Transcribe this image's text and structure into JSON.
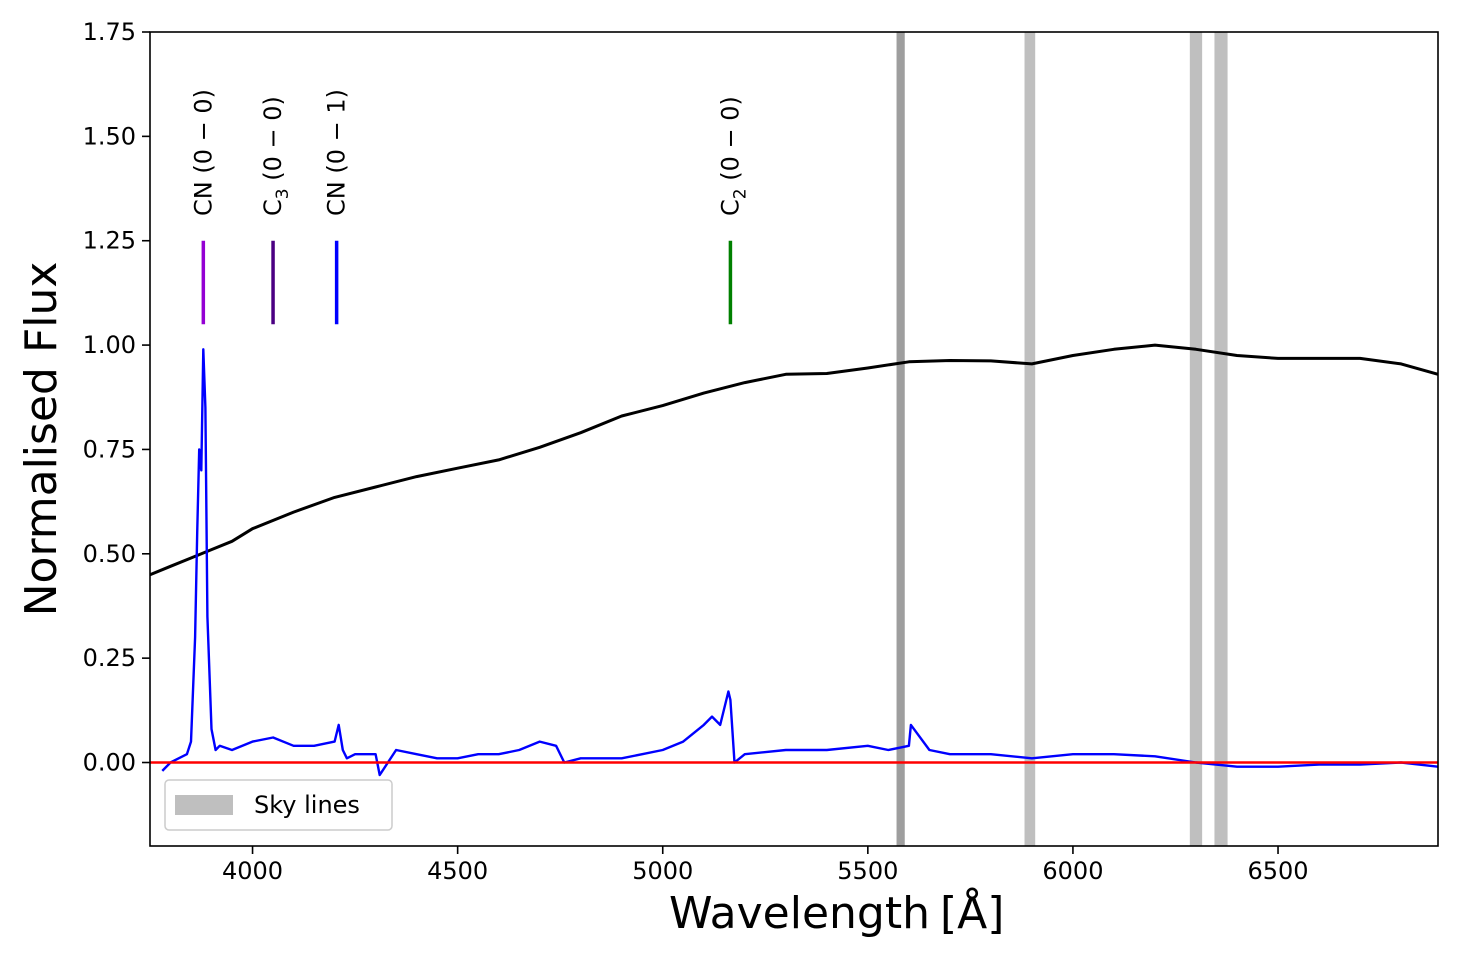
{
  "chart_data": {
    "type": "line",
    "title": "",
    "xlabel": "Wavelength",
    "xlabel_unit": "[Å]",
    "ylabel": "Normalised Flux",
    "xlim": [
      3750,
      6890
    ],
    "ylim": [
      -0.2,
      1.75
    ],
    "xticks": [
      "4000",
      "4500",
      "5000",
      "5500",
      "6000",
      "6500"
    ],
    "xtick_values": [
      4000,
      4500,
      5000,
      5500,
      6000,
      6500
    ],
    "yticks": [
      "0.00",
      "0.25",
      "0.50",
      "0.75",
      "1.00",
      "1.25",
      "1.50",
      "1.75"
    ],
    "ytick_values": [
      0,
      0.25,
      0.5,
      0.75,
      1.0,
      1.25,
      1.5,
      1.75
    ],
    "grid": false,
    "legend": {
      "position": "lower-left",
      "entries": [
        {
          "label": "Sky lines",
          "color": "#bfbfbf"
        }
      ]
    },
    "sky_lines": [
      {
        "from": 5570,
        "to": 5590,
        "color": "#9e9e9e"
      },
      {
        "from": 5882,
        "to": 5908,
        "color": "#bfbfbf"
      },
      {
        "from": 6285,
        "to": 6315,
        "color": "#bfbfbf"
      },
      {
        "from": 6345,
        "to": 6377,
        "color": "#bfbfbf"
      }
    ],
    "emission_bands": [
      {
        "species": "CN",
        "subscript": "",
        "transition": "(0 − 0)",
        "wavelength": 3880,
        "color": "#9400d3"
      },
      {
        "species": "C",
        "subscript": "3",
        "transition": "(0 − 0)",
        "wavelength": 4050,
        "color": "#4b0082"
      },
      {
        "species": "CN",
        "subscript": "",
        "transition": "(0 − 1)",
        "wavelength": 4205,
        "color": "#0000ff"
      },
      {
        "species": "C",
        "subscript": "2",
        "transition": "(0 − 0)",
        "wavelength": 5165,
        "color": "#008000"
      }
    ],
    "band_marker_range": [
      1.05,
      1.25
    ],
    "series": [
      {
        "role": "reference",
        "color": "#000000",
        "x": [
          3750,
          3800,
          3850,
          3900,
          3950,
          4000,
          4100,
          4200,
          4300,
          4400,
          4500,
          4600,
          4700,
          4800,
          4900,
          5000,
          5100,
          5200,
          5300,
          5400,
          5500,
          5600,
          5700,
          5800,
          5900,
          6000,
          6100,
          6200,
          6300,
          6400,
          6500,
          6600,
          6700,
          6800,
          6890
        ],
        "y": [
          0.45,
          0.47,
          0.49,
          0.51,
          0.53,
          0.56,
          0.6,
          0.635,
          0.66,
          0.685,
          0.705,
          0.725,
          0.755,
          0.79,
          0.83,
          0.855,
          0.885,
          0.91,
          0.93,
          0.932,
          0.945,
          0.96,
          0.963,
          0.962,
          0.955,
          0.975,
          0.99,
          1.0,
          0.99,
          0.975,
          0.968,
          0.968,
          0.968,
          0.955,
          0.93
        ]
      },
      {
        "role": "spectrum",
        "color": "#0000ff",
        "x": [
          3780,
          3800,
          3820,
          3840,
          3850,
          3860,
          3865,
          3870,
          3875,
          3880,
          3885,
          3890,
          3900,
          3910,
          3920,
          3950,
          4000,
          4050,
          4100,
          4150,
          4200,
          4210,
          4220,
          4230,
          4250,
          4300,
          4310,
          4350,
          4400,
          4450,
          4500,
          4550,
          4600,
          4650,
          4700,
          4740,
          4760,
          4800,
          4850,
          4900,
          4950,
          5000,
          5050,
          5100,
          5120,
          5140,
          5160,
          5165,
          5175,
          5200,
          5300,
          5400,
          5500,
          5550,
          5600,
          5605,
          5650,
          5700,
          5800,
          5900,
          6000,
          6100,
          6200,
          6300,
          6400,
          6500,
          6600,
          6700,
          6800,
          6890
        ],
        "y": [
          -0.02,
          0.0,
          0.01,
          0.02,
          0.05,
          0.3,
          0.55,
          0.75,
          0.7,
          0.99,
          0.85,
          0.35,
          0.08,
          0.03,
          0.04,
          0.03,
          0.05,
          0.06,
          0.04,
          0.04,
          0.05,
          0.09,
          0.03,
          0.01,
          0.02,
          0.02,
          -0.03,
          0.03,
          0.02,
          0.01,
          0.01,
          0.02,
          0.02,
          0.03,
          0.05,
          0.04,
          0.0,
          0.01,
          0.01,
          0.01,
          0.02,
          0.03,
          0.05,
          0.09,
          0.11,
          0.09,
          0.17,
          0.15,
          0.0,
          0.02,
          0.03,
          0.03,
          0.04,
          0.03,
          0.04,
          0.09,
          0.03,
          0.02,
          0.02,
          0.01,
          0.02,
          0.02,
          0.015,
          0.0,
          -0.01,
          -0.01,
          -0.005,
          -0.005,
          0.0,
          -0.01
        ]
      },
      {
        "role": "zero",
        "color": "#ff0000",
        "x": [
          3750,
          6890
        ],
        "y": [
          0,
          0
        ]
      }
    ]
  }
}
